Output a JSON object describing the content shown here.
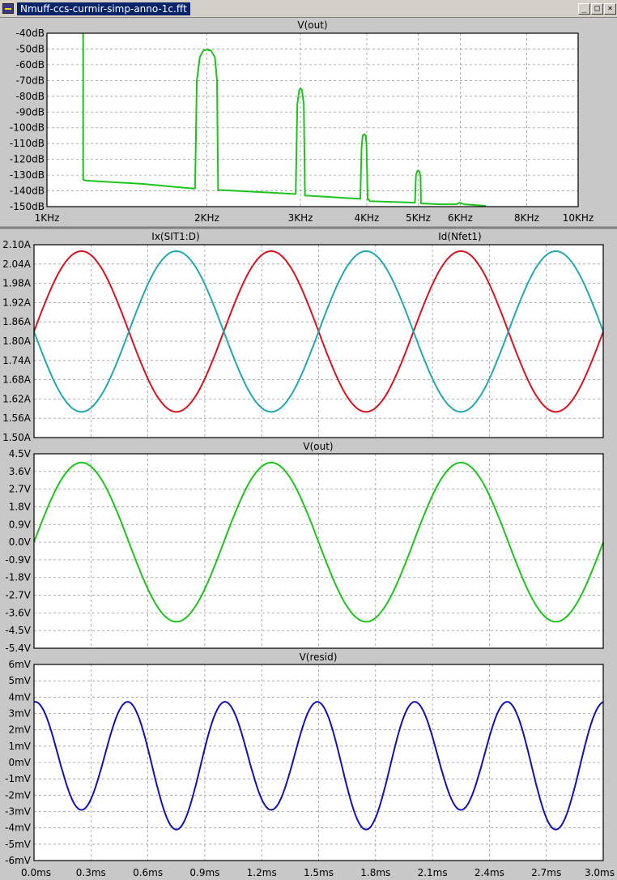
{
  "window": {
    "title": "Nmuff-ccs-curmir-simp-anno-1c.fft",
    "buttons": {
      "minimize": "_",
      "maximize": "□",
      "close": "✕"
    }
  },
  "colors": {
    "green": "#1cc41c",
    "red": "#d8121e",
    "cyan": "#21a8b4",
    "blue": "#1212b4"
  },
  "chart_data": [
    {
      "type": "line",
      "title": "V(out)",
      "x_scale": "log",
      "xlim": [
        1000,
        10000
      ],
      "x_ticks": [
        1000,
        2000,
        3000,
        4000,
        5000,
        6000,
        8000,
        10000
      ],
      "x_tick_labels": [
        "1KHz",
        "2KHz",
        "3KHz",
        "4KHz",
        "5KHz",
        "6KHz",
        "8KHz",
        "10KHz"
      ],
      "ylim": [
        -150,
        -40
      ],
      "y_tick_labels": [
        "-40dB",
        "-50dB",
        "-60dB",
        "-70dB",
        "-80dB",
        "-90dB",
        "-100dB",
        "-110dB",
        "-120dB",
        "-130dB",
        "-140dB",
        "-150dB"
      ],
      "grid": true,
      "series": [
        {
          "name": "V(out)",
          "color": "green",
          "x": [
            1170,
            1170,
            1185,
            1500,
            1880,
            1900,
            1915,
            1940,
            1970,
            2000,
            2035,
            2070,
            2090,
            2100,
            2140,
            2600,
            2920,
            2940,
            2960,
            2985,
            3000,
            3020,
            3045,
            3060,
            3070,
            3100,
            3850,
            3890,
            3910,
            3930,
            3960,
            3980,
            3995,
            4015,
            4040,
            4050,
            4900,
            4930,
            4950,
            4980,
            5000,
            5020,
            5050,
            5060,
            5080,
            5500,
            5900,
            5980,
            6000,
            6030,
            6100,
            6700
          ],
          "y": [
            -40,
            -133,
            -133.5,
            -135.5,
            -138.5,
            -138.5,
            -70,
            -55,
            -51,
            -50.5,
            -51,
            -55,
            -70,
            -139.5,
            -139.5,
            -141,
            -142,
            -142,
            -85,
            -76,
            -75,
            -76,
            -85,
            -143,
            -143,
            -143,
            -145,
            -145,
            -113,
            -105,
            -104,
            -105,
            -110,
            -145.5,
            -145.5,
            -146.5,
            -147.5,
            -147.5,
            -130,
            -127.5,
            -127,
            -127.5,
            -131,
            -148,
            -148,
            -148.5,
            -148.5,
            -147.5,
            -147.5,
            -148,
            -148.5,
            -149.5
          ]
        }
      ]
    },
    {
      "type": "line",
      "series_labels": [
        "Ix(SIT1:D)",
        "Id(Nfet1)"
      ],
      "xlim": [
        0,
        3.0
      ],
      "ylim": [
        1.5,
        2.1
      ],
      "y_tick_labels": [
        "2.10A",
        "2.04A",
        "1.98A",
        "1.92A",
        "1.86A",
        "1.80A",
        "1.74A",
        "1.68A",
        "1.62A",
        "1.56A",
        "1.50A"
      ],
      "grid": true,
      "series": [
        {
          "name": "Ix(SIT1:D)",
          "color": "red",
          "offset": 1.83,
          "amplitude": 0.25,
          "frequency_hz": 1000,
          "phase": 0
        },
        {
          "name": "Id(Nfet1)",
          "color": "cyan",
          "offset": 1.83,
          "amplitude": 0.25,
          "frequency_hz": 1000,
          "phase": 180
        }
      ]
    },
    {
      "type": "line",
      "title": "V(out)",
      "xlim": [
        0,
        3.0
      ],
      "ylim": [
        -5.4,
        4.5
      ],
      "y_tick_labels": [
        "4.5V",
        "3.6V",
        "2.7V",
        "1.8V",
        "0.9V",
        "0.0V",
        "-0.9V",
        "-1.8V",
        "-2.7V",
        "-3.6V",
        "-4.5V",
        "-5.4V"
      ],
      "grid": true,
      "series": [
        {
          "name": "V(out)",
          "color": "green",
          "offset": 0,
          "amplitude": 4.05,
          "frequency_hz": 1000,
          "phase": 0
        }
      ]
    },
    {
      "type": "line",
      "title": "V(resid)",
      "xlim": [
        0,
        3.0
      ],
      "x_tick_labels": [
        "0.0ms",
        "0.3ms",
        "0.6ms",
        "0.9ms",
        "1.2ms",
        "1.5ms",
        "1.8ms",
        "2.1ms",
        "2.4ms",
        "2.7ms",
        "3.0ms"
      ],
      "ylim": [
        -6,
        6
      ],
      "y_tick_labels": [
        "6mV",
        "5mV",
        "4mV",
        "3mV",
        "2mV",
        "1mV",
        "0mV",
        "-1mV",
        "-2mV",
        "-3mV",
        "-4mV",
        "-5mV",
        "-6mV"
      ],
      "grid": true,
      "series": [
        {
          "name": "V(resid)",
          "color": "blue",
          "offset": 0.1,
          "amplitude": 3.6,
          "frequency_hz": 2000,
          "phase": 90,
          "secondary_amplitude": 0.6,
          "secondary_frequency_hz": 1000,
          "secondary_phase": 0
        }
      ]
    }
  ]
}
